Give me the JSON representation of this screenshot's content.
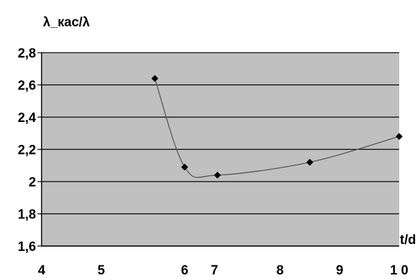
{
  "chart_data": {
    "type": "line",
    "ylabel": "λ_кас/λ",
    "xlabel": "t/d",
    "y_ticks": [
      "2,8",
      "2,6",
      "2,4",
      "2,2",
      "2",
      "1,8",
      "1,6"
    ],
    "y_tick_values": [
      2.8,
      2.6,
      2.4,
      2.2,
      2.0,
      1.8,
      1.6
    ],
    "x_ticks": [
      "4",
      "5",
      "6",
      "7",
      "8",
      "9",
      "1 0"
    ],
    "x_tick_values": [
      4,
      5,
      6.4,
      6.9,
      8,
      9,
      10
    ],
    "xlim": [
      4,
      10
    ],
    "ylim": [
      1.6,
      2.8
    ],
    "grid": true,
    "series": [
      {
        "x": [
          5.9,
          6.4,
          6.95,
          8.5,
          10
        ],
        "y": [
          2.64,
          2.09,
          2.04,
          2.12,
          2.28
        ]
      }
    ],
    "colors": {
      "plot_background": "#c0c0c0",
      "gridline": "#000000",
      "line": "#555555",
      "marker": "#000000"
    }
  }
}
